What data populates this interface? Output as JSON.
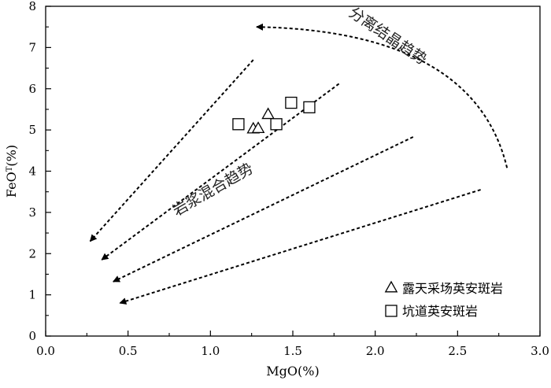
{
  "chart_data": {
    "type": "scatter",
    "xlabel": "MgO(%)",
    "ylabel": "FeO",
    "ylabel_sup": "T",
    "ylabel_unit": "(%)",
    "xlim": [
      0.0,
      3.0
    ],
    "ylim": [
      0,
      8
    ],
    "x_ticks": [
      "0.0",
      "0.5",
      "1.0",
      "1.5",
      "2.0",
      "2.5",
      "3.0"
    ],
    "x_tick_values": [
      0.0,
      0.5,
      1.0,
      1.5,
      2.0,
      2.5,
      3.0
    ],
    "y_ticks": [
      "0",
      "1",
      "2",
      "3",
      "4",
      "5",
      "6",
      "7",
      "8"
    ],
    "y_tick_values": [
      0,
      1,
      2,
      3,
      4,
      5,
      6,
      7,
      8
    ],
    "grid": false,
    "legend_position": "bottom-right",
    "series": [
      {
        "name": "露天采场英安斑岩",
        "marker": "triangle",
        "points": [
          {
            "x": 1.26,
            "y": 5.02
          },
          {
            "x": 1.29,
            "y": 5.03
          },
          {
            "x": 1.35,
            "y": 5.37
          }
        ]
      },
      {
        "name": "坑道英安斑岩",
        "marker": "square",
        "points": [
          {
            "x": 1.17,
            "y": 5.14
          },
          {
            "x": 1.4,
            "y": 5.14
          },
          {
            "x": 1.49,
            "y": 5.66
          },
          {
            "x": 1.6,
            "y": 5.55
          }
        ]
      }
    ],
    "arrows": [
      {
        "x1": 1.26,
        "y1": 6.7,
        "x2": 0.27,
        "y2": 2.3
      },
      {
        "x1": 1.78,
        "y1": 6.12,
        "x2": 0.34,
        "y2": 1.85
      },
      {
        "x1": 2.23,
        "y1": 4.83,
        "x2": 0.41,
        "y2": 1.32
      },
      {
        "x1": 2.64,
        "y1": 3.55,
        "x2": 0.45,
        "y2": 0.8
      }
    ],
    "curved_arrow": {
      "start": {
        "x": 2.8,
        "y": 4.08
      },
      "control": {
        "x": 2.6,
        "y": 7.4
      },
      "end": {
        "x": 1.28,
        "y": 7.5
      }
    },
    "annotations": [
      {
        "text": "分离结晶趋势",
        "x": 2.06,
        "y": 7.18,
        "angle": 34
      },
      {
        "text": "岩浆混合趋势",
        "x": 1.03,
        "y": 3.45,
        "angle": -30
      }
    ]
  }
}
